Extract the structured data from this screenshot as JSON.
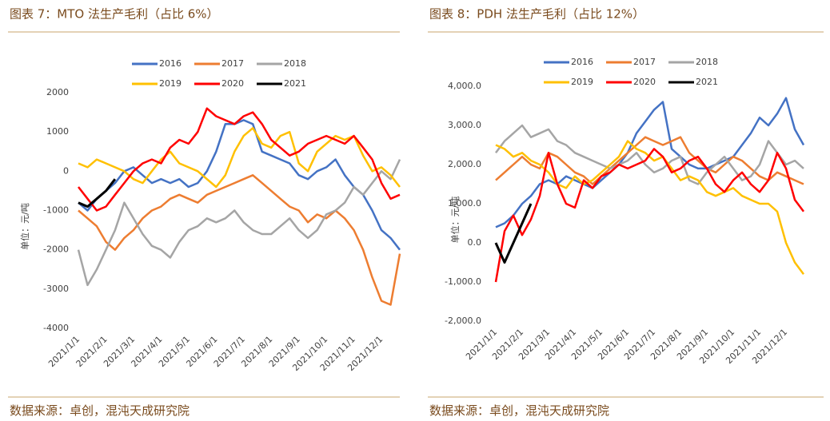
{
  "chart_data": [
    {
      "type": "line",
      "title": "图表 7：MTO 法生产毛利（占比 6%）",
      "y_label": "单位：元/吨",
      "source": "数据来源：卓创，混沌天成研究院",
      "categories": [
        "2021/1/1",
        null,
        null,
        "2021/2/1",
        null,
        null,
        "2021/3/1",
        null,
        null,
        "2021/4/1",
        null,
        null,
        "2021/5/1",
        null,
        null,
        "2021/6/1",
        null,
        null,
        "2021/7/1",
        null,
        null,
        "2021/8/1",
        null,
        null,
        "2021/9/1",
        null,
        null,
        "2021/10/1",
        null,
        null,
        "2021/11/1",
        null,
        null,
        "2021/12/1",
        null,
        null
      ],
      "ylim": [
        -4000,
        2000
      ],
      "yticks": [
        2000,
        1000,
        0,
        -1000,
        -2000,
        -3000,
        -4000
      ],
      "grid": false,
      "series": [
        {
          "name": "2016",
          "color": "#4472c4",
          "values": [
            -800,
            -1000,
            -700,
            -500,
            -300,
            0,
            100,
            -100,
            -300,
            -200,
            -300,
            -200,
            -400,
            -300,
            0,
            500,
            1200,
            1200,
            1300,
            1200,
            500,
            400,
            300,
            200,
            -100,
            -200,
            0,
            100,
            300,
            -100,
            -400,
            -600,
            -1000,
            -1500,
            -1700,
            -2000
          ]
        },
        {
          "name": "2017",
          "color": "#ed7d31",
          "values": [
            -1000,
            -1200,
            -1400,
            -1800,
            -2000,
            -1700,
            -1500,
            -1200,
            -1000,
            -900,
            -700,
            -600,
            -700,
            -800,
            -600,
            -500,
            -400,
            -300,
            -200,
            -100,
            -300,
            -500,
            -700,
            -900,
            -1000,
            -1300,
            -1100,
            -1200,
            -1000,
            -1200,
            -1500,
            -2000,
            -2700,
            -3300,
            -3400,
            -2100
          ]
        },
        {
          "name": "2018",
          "color": "#a5a5a5",
          "values": [
            -2000,
            -2900,
            -2500,
            -2000,
            -1500,
            -800,
            -1200,
            -1600,
            -1900,
            -2000,
            -2200,
            -1800,
            -1500,
            -1400,
            -1200,
            -1300,
            -1200,
            -1000,
            -1300,
            -1500,
            -1600,
            -1600,
            -1400,
            -1200,
            -1500,
            -1700,
            -1500,
            -1100,
            -1000,
            -800,
            -400,
            -600,
            -300,
            0,
            -200,
            300
          ]
        },
        {
          "name": "2019",
          "color": "#ffc000",
          "values": [
            200,
            100,
            300,
            200,
            100,
            0,
            -200,
            -300,
            0,
            300,
            500,
            200,
            100,
            0,
            -200,
            -400,
            -100,
            500,
            900,
            1100,
            700,
            600,
            900,
            1000,
            200,
            0,
            500,
            700,
            900,
            800,
            900,
            400,
            0,
            100,
            -100,
            -400
          ]
        },
        {
          "name": "2020",
          "color": "#ff0000",
          "values": [
            -400,
            -700,
            -1000,
            -900,
            -600,
            -300,
            0,
            200,
            300,
            200,
            600,
            800,
            700,
            1000,
            1600,
            1400,
            1300,
            1200,
            1400,
            1500,
            1200,
            800,
            600,
            400,
            500,
            700,
            800,
            900,
            800,
            700,
            900,
            600,
            300,
            -300,
            -700,
            -600
          ]
        },
        {
          "name": "2021",
          "color": "#000000",
          "values": [
            -800,
            -900,
            -700,
            -500,
            -200,
            null,
            null,
            null,
            null,
            null,
            null,
            null,
            null,
            null,
            null,
            null,
            null,
            null,
            null,
            null,
            null,
            null,
            null,
            null,
            null,
            null,
            null,
            null,
            null,
            null,
            null,
            null,
            null,
            null,
            null,
            null
          ]
        }
      ]
    },
    {
      "type": "line",
      "title": "图表 8：PDH 法生产毛利（占比 12%）",
      "y_label": "单位：元/吨",
      "source": "数据来源：卓创，混沌天成研究院",
      "categories": [
        "2021/1/1",
        null,
        null,
        "2021/2/1",
        null,
        null,
        "2021/3/1",
        null,
        null,
        "2021/4/1",
        null,
        null,
        "2021/5/1",
        null,
        null,
        "2021/6/1",
        null,
        null,
        "2021/7/1",
        null,
        null,
        "2021/8/1",
        null,
        null,
        "2021/9/1",
        null,
        null,
        "2021/10/1",
        null,
        null,
        "2021/11/1",
        null,
        null,
        "2021/12/1",
        null,
        null
      ],
      "ylim": [
        -2000,
        4000
      ],
      "yticks": [
        {
          "value": 4000,
          "label": "4,000.0"
        },
        {
          "value": 3000,
          "label": "3,000.0"
        },
        {
          "value": 2000,
          "label": "2,000.0"
        },
        {
          "value": 1000,
          "label": "1,000.0"
        },
        {
          "value": 0,
          "label": "0.0"
        },
        {
          "value": -1000,
          "label": "-1,000.0"
        },
        {
          "value": -2000,
          "label": "-2,000.0"
        }
      ],
      "grid": false,
      "series": [
        {
          "name": "2016",
          "color": "#4472c4",
          "values": [
            400,
            500,
            700,
            1000,
            1200,
            1500,
            1600,
            1500,
            1700,
            1600,
            1500,
            1400,
            1600,
            1800,
            2000,
            2300,
            2800,
            3100,
            3400,
            3600,
            2400,
            2200,
            2000,
            1900,
            1900,
            2000,
            2100,
            2200,
            2500,
            2800,
            3200,
            3000,
            3300,
            3700,
            2900,
            2500
          ]
        },
        {
          "name": "2017",
          "color": "#ed7d31",
          "values": [
            1600,
            1800,
            2000,
            2200,
            2000,
            1900,
            2300,
            2200,
            2000,
            1800,
            1700,
            1500,
            1700,
            1900,
            2100,
            2300,
            2500,
            2700,
            2600,
            2500,
            2600,
            2700,
            2300,
            2100,
            1900,
            1800,
            2000,
            2200,
            2100,
            1900,
            1700,
            1600,
            1800,
            1700,
            1600,
            1500
          ]
        },
        {
          "name": "2018",
          "color": "#a5a5a5",
          "values": [
            2300,
            2600,
            2800,
            3000,
            2700,
            2800,
            2900,
            2600,
            2500,
            2300,
            2200,
            2100,
            2000,
            1900,
            2000,
            2100,
            2300,
            2000,
            1800,
            1900,
            2100,
            2200,
            1600,
            1500,
            1800,
            2000,
            2200,
            1900,
            1600,
            1700,
            2000,
            2600,
            2300,
            2000,
            2100,
            1900
          ]
        },
        {
          "name": "2019",
          "color": "#ffc000",
          "values": [
            2500,
            2400,
            2200,
            2300,
            2100,
            2000,
            1800,
            1500,
            1400,
            1700,
            1500,
            1600,
            1800,
            2000,
            2200,
            2600,
            2400,
            2300,
            2100,
            2200,
            1900,
            1600,
            1700,
            1600,
            1300,
            1200,
            1300,
            1400,
            1200,
            1100,
            1000,
            1000,
            800,
            0,
            -500,
            -800
          ]
        },
        {
          "name": "2020",
          "color": "#ff0000",
          "values": [
            -1000,
            300,
            700,
            200,
            600,
            1200,
            2300,
            1500,
            1000,
            900,
            1600,
            1400,
            1700,
            1800,
            2000,
            1900,
            2000,
            2100,
            2400,
            2200,
            1800,
            1900,
            2100,
            2200,
            1900,
            1500,
            1300,
            1600,
            1800,
            1500,
            1300,
            1600,
            2300,
            1900,
            1100,
            800
          ]
        },
        {
          "name": "2021",
          "color": "#000000",
          "values": [
            0,
            -500,
            0,
            500,
            1000,
            null,
            null,
            null,
            null,
            null,
            null,
            null,
            null,
            null,
            null,
            null,
            null,
            null,
            null,
            null,
            null,
            null,
            null,
            null,
            null,
            null,
            null,
            null,
            null,
            null,
            null,
            null,
            null,
            null,
            null,
            null
          ]
        }
      ]
    }
  ]
}
